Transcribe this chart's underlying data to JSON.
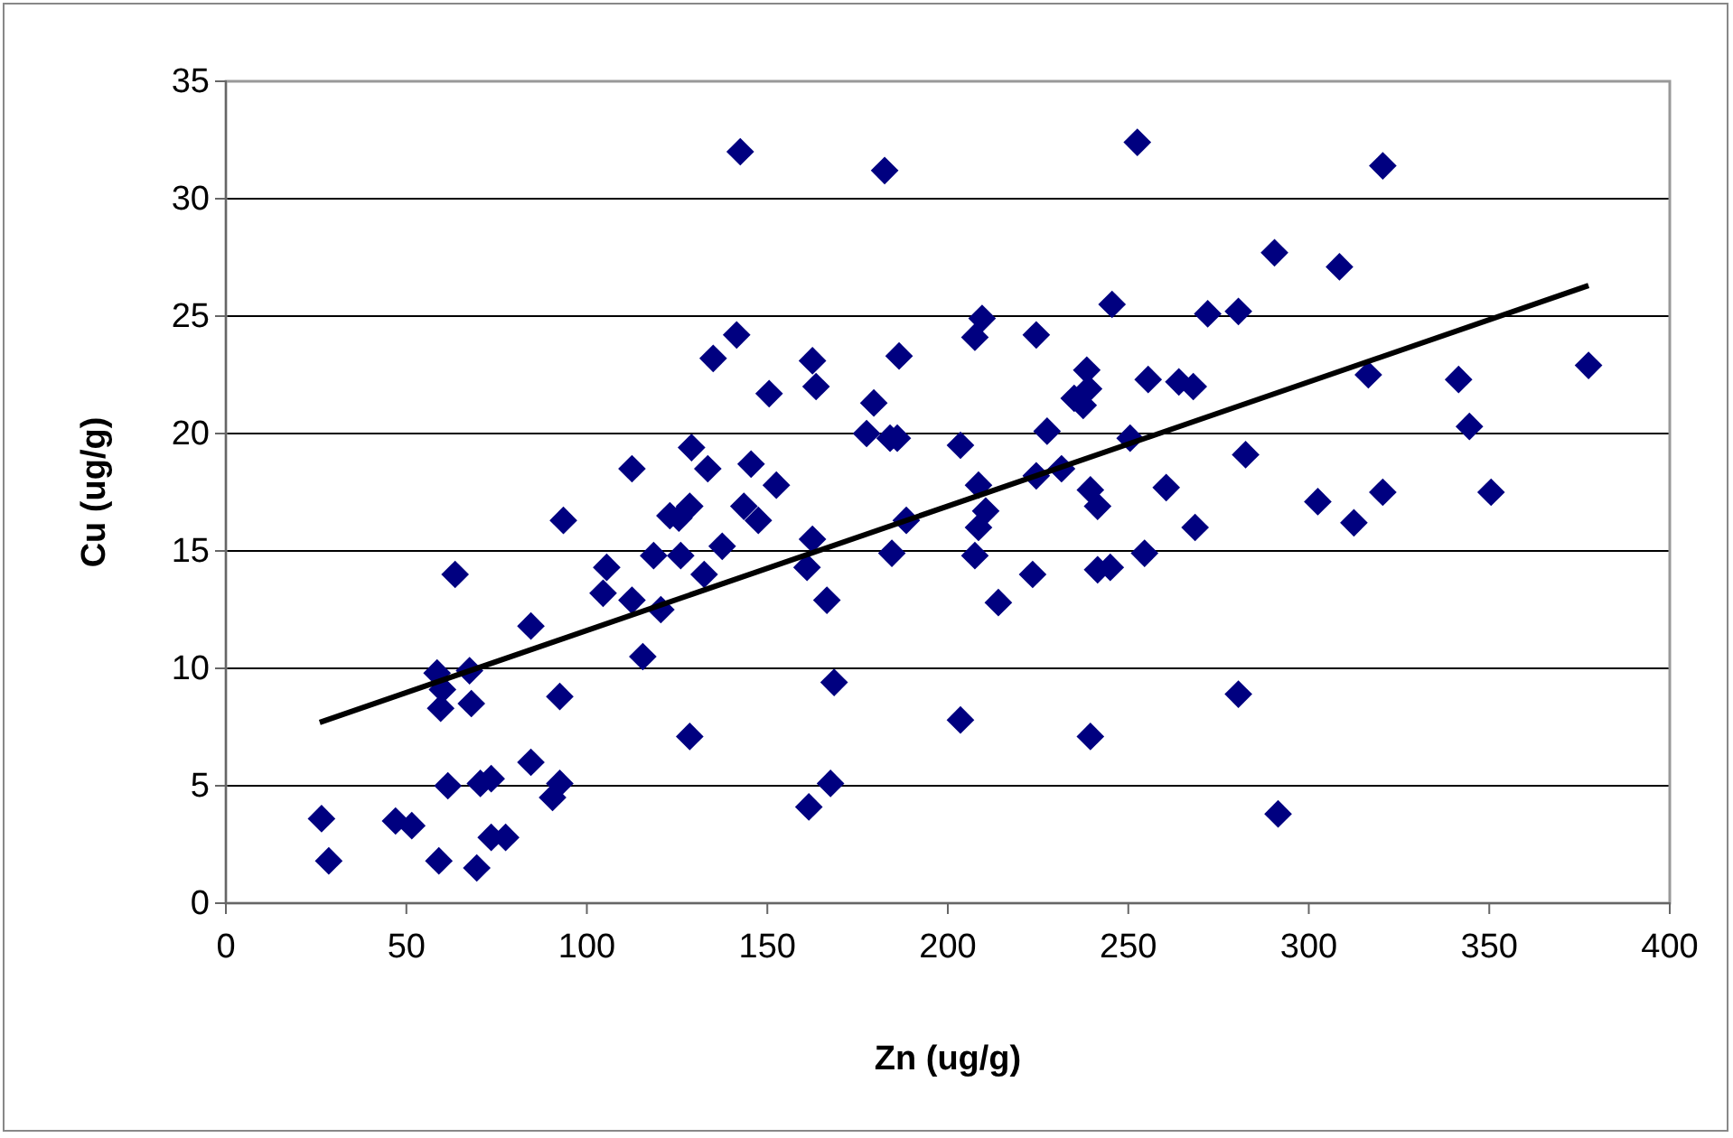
{
  "chart_data": {
    "type": "scatter",
    "xlabel": "Zn (ug/g)",
    "ylabel": "Cu (ug/g)",
    "xlim": [
      0,
      400
    ],
    "ylim": [
      0,
      35
    ],
    "xticks": [
      0,
      50,
      100,
      150,
      200,
      250,
      300,
      350,
      400
    ],
    "yticks": [
      0,
      5,
      10,
      15,
      20,
      25,
      30,
      35
    ],
    "grid": "y",
    "marker": "diamond",
    "series": [
      {
        "color": "#000080",
        "x": [
          26.5,
          28.5,
          47,
          51.5,
          59,
          69.5,
          73.5,
          77.5,
          61.5,
          70.5,
          73.5,
          58.5,
          60,
          59.5,
          67.5,
          68,
          63.5,
          84.5,
          84.5,
          90.5,
          92.5,
          92.5,
          93.5,
          104.5,
          105.5,
          112.5,
          112.5,
          115.5,
          118.5,
          120.5,
          123,
          125.5,
          126,
          128.5,
          128.5,
          129,
          132.5,
          133.5,
          135,
          137.5,
          141.5,
          142.5,
          143.5,
          145.5,
          147.5,
          150.5,
          152.5,
          161,
          161.5,
          162.5,
          162.5,
          163.5,
          166.5,
          167.5,
          168.5,
          177.5,
          179.5,
          182.5,
          184,
          186,
          184.5,
          188.5,
          186.5,
          203.5,
          203.5,
          207.5,
          209.5,
          208.5,
          210.5,
          208.5,
          207.5,
          214,
          223.5,
          224.5,
          227.5,
          224.5,
          231.5,
          235,
          238.5,
          239,
          237.5,
          239.5,
          241.5,
          241.5,
          245,
          239.5,
          245.5,
          252.5,
          250.5,
          255.5,
          254.5,
          260.5,
          264,
          268,
          268.5,
          272,
          280.5,
          290.5,
          308.5,
          320.5,
          282.5,
          280.5,
          291.5,
          302.5,
          312.5,
          320.5,
          316.5,
          341.5,
          344.5,
          350.5,
          377.5
        ],
        "values": [
          3.6,
          1.8,
          3.5,
          3.3,
          1.8,
          1.5,
          2.8,
          2.8,
          5.0,
          5.1,
          5.3,
          9.8,
          9.1,
          8.3,
          9.9,
          8.5,
          14.0,
          11.8,
          6.0,
          4.5,
          5.1,
          8.8,
          16.3,
          13.2,
          14.3,
          12.9,
          18.5,
          10.5,
          14.8,
          12.5,
          16.5,
          16.4,
          14.8,
          16.9,
          7.1,
          19.4,
          14.0,
          18.5,
          23.2,
          15.2,
          24.2,
          32.0,
          16.9,
          18.7,
          16.3,
          21.7,
          17.8,
          14.3,
          4.1,
          15.5,
          23.1,
          22.0,
          12.9,
          5.1,
          9.4,
          20.0,
          21.3,
          31.2,
          19.8,
          19.8,
          14.9,
          16.3,
          23.3,
          19.5,
          7.8,
          24.1,
          24.9,
          17.8,
          16.7,
          16.0,
          14.8,
          12.8,
          14.0,
          24.2,
          20.1,
          18.2,
          18.5,
          21.5,
          22.7,
          21.9,
          21.2,
          17.6,
          16.9,
          14.2,
          14.3,
          7.1,
          25.5,
          32.4,
          19.8,
          22.3,
          14.9,
          17.7,
          22.2,
          22.0,
          16.0,
          25.1,
          25.2,
          27.7,
          27.1,
          31.4,
          19.1,
          8.9,
          3.8,
          17.1,
          16.2,
          17.5,
          22.5,
          22.3,
          20.3,
          17.5,
          22.9
        ]
      },
      {
        "type": "line",
        "color": "#000000",
        "marker": "none",
        "x": [
          26,
          377.5
        ],
        "values": [
          7.7,
          26.3
        ]
      }
    ]
  }
}
